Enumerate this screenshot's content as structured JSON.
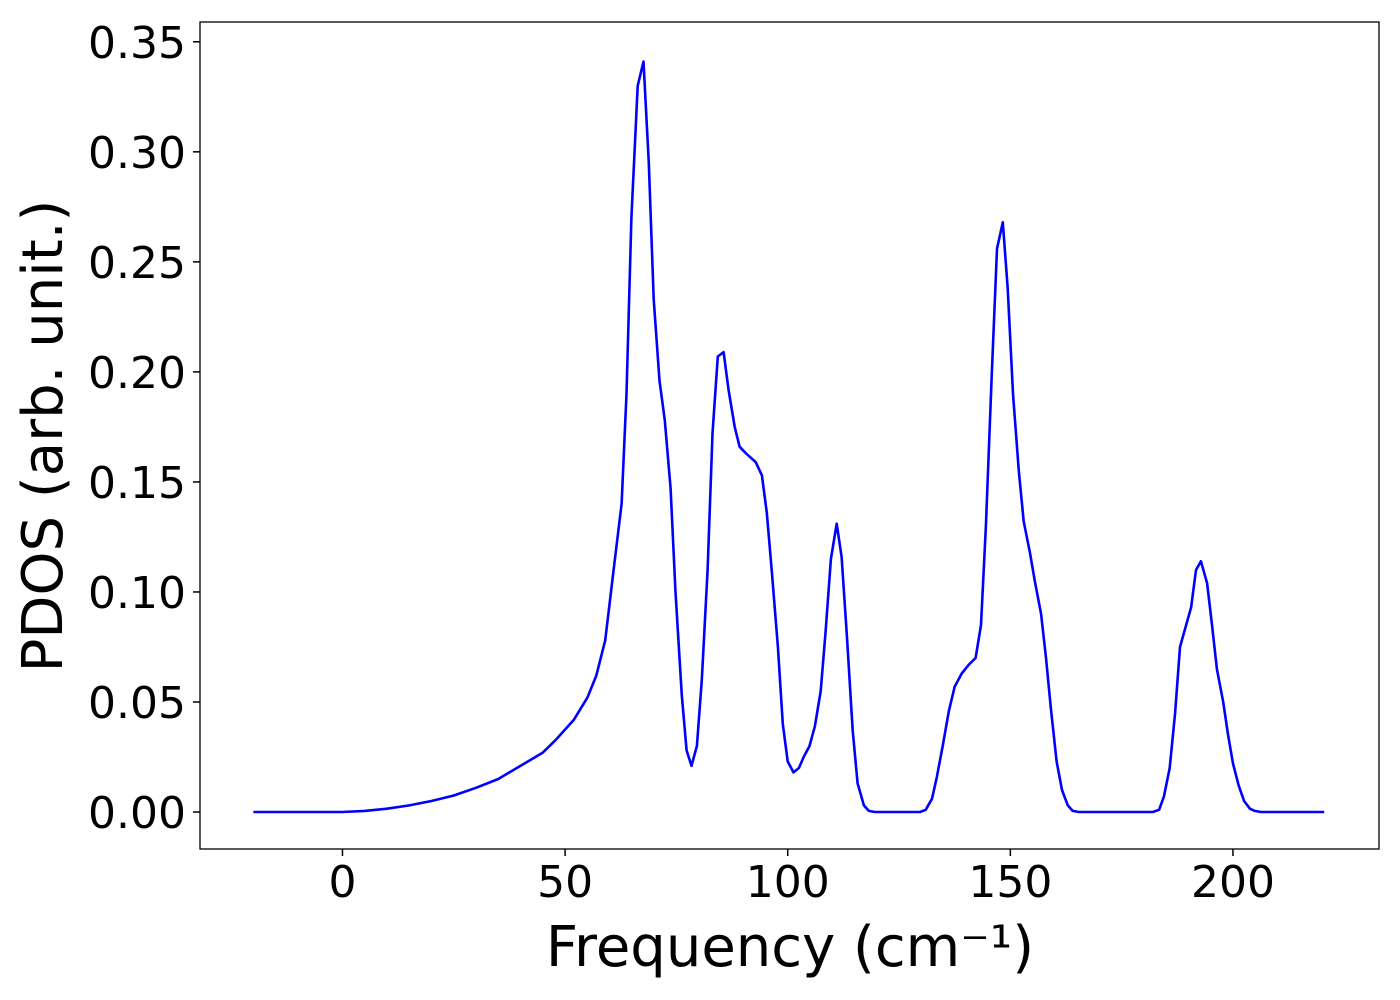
{
  "chart_data": {
    "type": "line",
    "x_label": "Frequency (cm⁻¹)",
    "y_label": "PDOS (arb. unit.)",
    "color": "#0000ff",
    "xlim": [
      -32,
      232.8
    ],
    "ylim": [
      -0.0168,
      0.359
    ],
    "xticks": [
      0,
      50,
      100,
      150,
      200
    ],
    "yticks": [
      {
        "value": 0,
        "label": "0.00"
      },
      0.05,
      {
        "value": 0.1,
        "label": "0.10"
      },
      0.15,
      {
        "value": 0.2,
        "label": "0.20"
      },
      0.25,
      {
        "value": 0.3,
        "label": "0.30"
      },
      0.35
    ],
    "x": [
      -20,
      0,
      5,
      10,
      15,
      20,
      25,
      30,
      35,
      40,
      45,
      48,
      52,
      55,
      57,
      59,
      60.9,
      62.7,
      63.8,
      64.9,
      66.3,
      67.6,
      68.8,
      69.9,
      71.2,
      72.4,
      73.7,
      74.8,
      76.2,
      77.3,
      78.4,
      79.6,
      80.7,
      82.0,
      83.1,
      84.3,
      85.6,
      86.7,
      88.1,
      89.2,
      90.6,
      91.7,
      92.8,
      94.2,
      95.3,
      96.4,
      97.8,
      98.9,
      100,
      101.3,
      102.5,
      103.6,
      104.9,
      106.1,
      107.4,
      108.5,
      109.7,
      111,
      112.1,
      113.3,
      114.6,
      115.7,
      117.1,
      118.2,
      119.6,
      129.7,
      131,
      132.4,
      133.5,
      134.8,
      136.2,
      137.5,
      139.1,
      140.7,
      142.2,
      143.4,
      144.5,
      145.8,
      147,
      148.3,
      149.4,
      150.6,
      151.9,
      153,
      154.4,
      155.5,
      156.9,
      158,
      159.1,
      160.4,
      161.6,
      162.9,
      164,
      165.4,
      182,
      183.4,
      184.5,
      185.8,
      187,
      188.1,
      190.6,
      191.7,
      192.8,
      194.2,
      195.3,
      196.4,
      197.8,
      198.9,
      200,
      201.3,
      202.5,
      203.8,
      204.9,
      206.3,
      220.5
    ],
    "values": [
      0,
      0,
      0.0005,
      0.0015,
      0.003,
      0.005,
      0.0075,
      0.011,
      0.015,
      0.021,
      0.027,
      0.033,
      0.042,
      0.052,
      0.062,
      0.078,
      0.11,
      0.14,
      0.19,
      0.27,
      0.33,
      0.341,
      0.295,
      0.233,
      0.196,
      0.178,
      0.147,
      0.1,
      0.053,
      0.028,
      0.021,
      0.03,
      0.06,
      0.11,
      0.172,
      0.207,
      0.209,
      0.192,
      0.175,
      0.166,
      0.163,
      0.161,
      0.159,
      0.153,
      0.136,
      0.11,
      0.075,
      0.04,
      0.023,
      0.018,
      0.02,
      0.025,
      0.03,
      0.039,
      0.055,
      0.082,
      0.115,
      0.131,
      0.116,
      0.08,
      0.037,
      0.013,
      0.003,
      0.0005,
      0,
      0,
      0.001,
      0.006,
      0.016,
      0.03,
      0.046,
      0.057,
      0.063,
      0.067,
      0.07,
      0.085,
      0.13,
      0.197,
      0.256,
      0.268,
      0.238,
      0.19,
      0.155,
      0.132,
      0.118,
      0.105,
      0.09,
      0.07,
      0.047,
      0.023,
      0.01,
      0.003,
      0.0005,
      0,
      0,
      0.001,
      0.007,
      0.02,
      0.045,
      0.075,
      0.093,
      0.11,
      0.114,
      0.104,
      0.085,
      0.065,
      0.05,
      0.035,
      0.022,
      0.012,
      0.005,
      0.0015,
      0.0005,
      0,
      0
    ]
  }
}
